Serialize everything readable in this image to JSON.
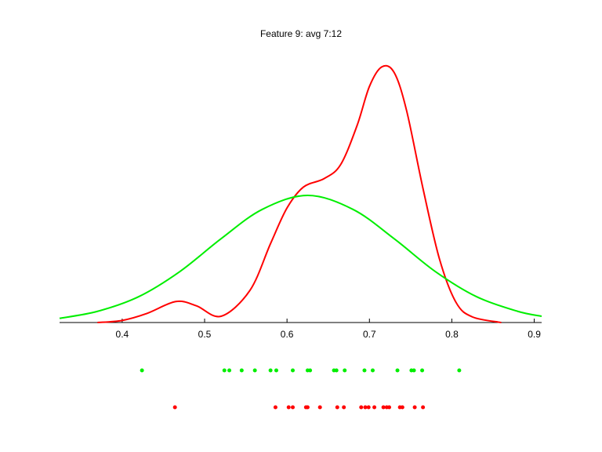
{
  "chart_data": {
    "type": "line",
    "title": "Feature 9: avg 7:12",
    "xlim": [
      0.324,
      0.909
    ],
    "xticks": [
      0.4,
      0.5,
      0.6,
      0.7,
      0.8,
      0.9
    ],
    "ylim": [
      0,
      4
    ],
    "series": [
      {
        "color": "#ff0000",
        "x": [
          0.37,
          0.4,
          0.43,
          0.465,
          0.49,
          0.52,
          0.555,
          0.58,
          0.6,
          0.62,
          0.645,
          0.665,
          0.685,
          0.7,
          0.715,
          0.73,
          0.745,
          0.765,
          0.785,
          0.805,
          0.825,
          0.86
        ],
        "values": [
          0,
          0.03,
          0.13,
          0.3,
          0.24,
          0.09,
          0.46,
          1.13,
          1.64,
          1.94,
          2.06,
          2.26,
          2.82,
          3.38,
          3.66,
          3.58,
          3.04,
          1.92,
          0.91,
          0.29,
          0.08,
          0
        ],
        "samples": [
          0.464,
          0.586,
          0.602,
          0.607,
          0.623,
          0.625,
          0.64,
          0.661,
          0.669,
          0.69,
          0.695,
          0.699,
          0.706,
          0.717,
          0.721,
          0.724,
          0.737,
          0.74,
          0.755,
          0.765
        ]
      },
      {
        "color": "#00ee00",
        "x": [
          0.324,
          0.37,
          0.42,
          0.47,
          0.52,
          0.57,
          0.625,
          0.68,
          0.73,
          0.78,
          0.83,
          0.88,
          0.909
        ],
        "values": [
          0.06,
          0.16,
          0.37,
          0.73,
          1.2,
          1.62,
          1.82,
          1.62,
          1.2,
          0.73,
          0.37,
          0.16,
          0.09
        ],
        "samples": [
          0.424,
          0.524,
          0.53,
          0.545,
          0.561,
          0.58,
          0.587,
          0.607,
          0.625,
          0.628,
          0.657,
          0.66,
          0.67,
          0.694,
          0.704,
          0.734,
          0.751,
          0.754,
          0.764,
          0.809
        ]
      }
    ]
  }
}
